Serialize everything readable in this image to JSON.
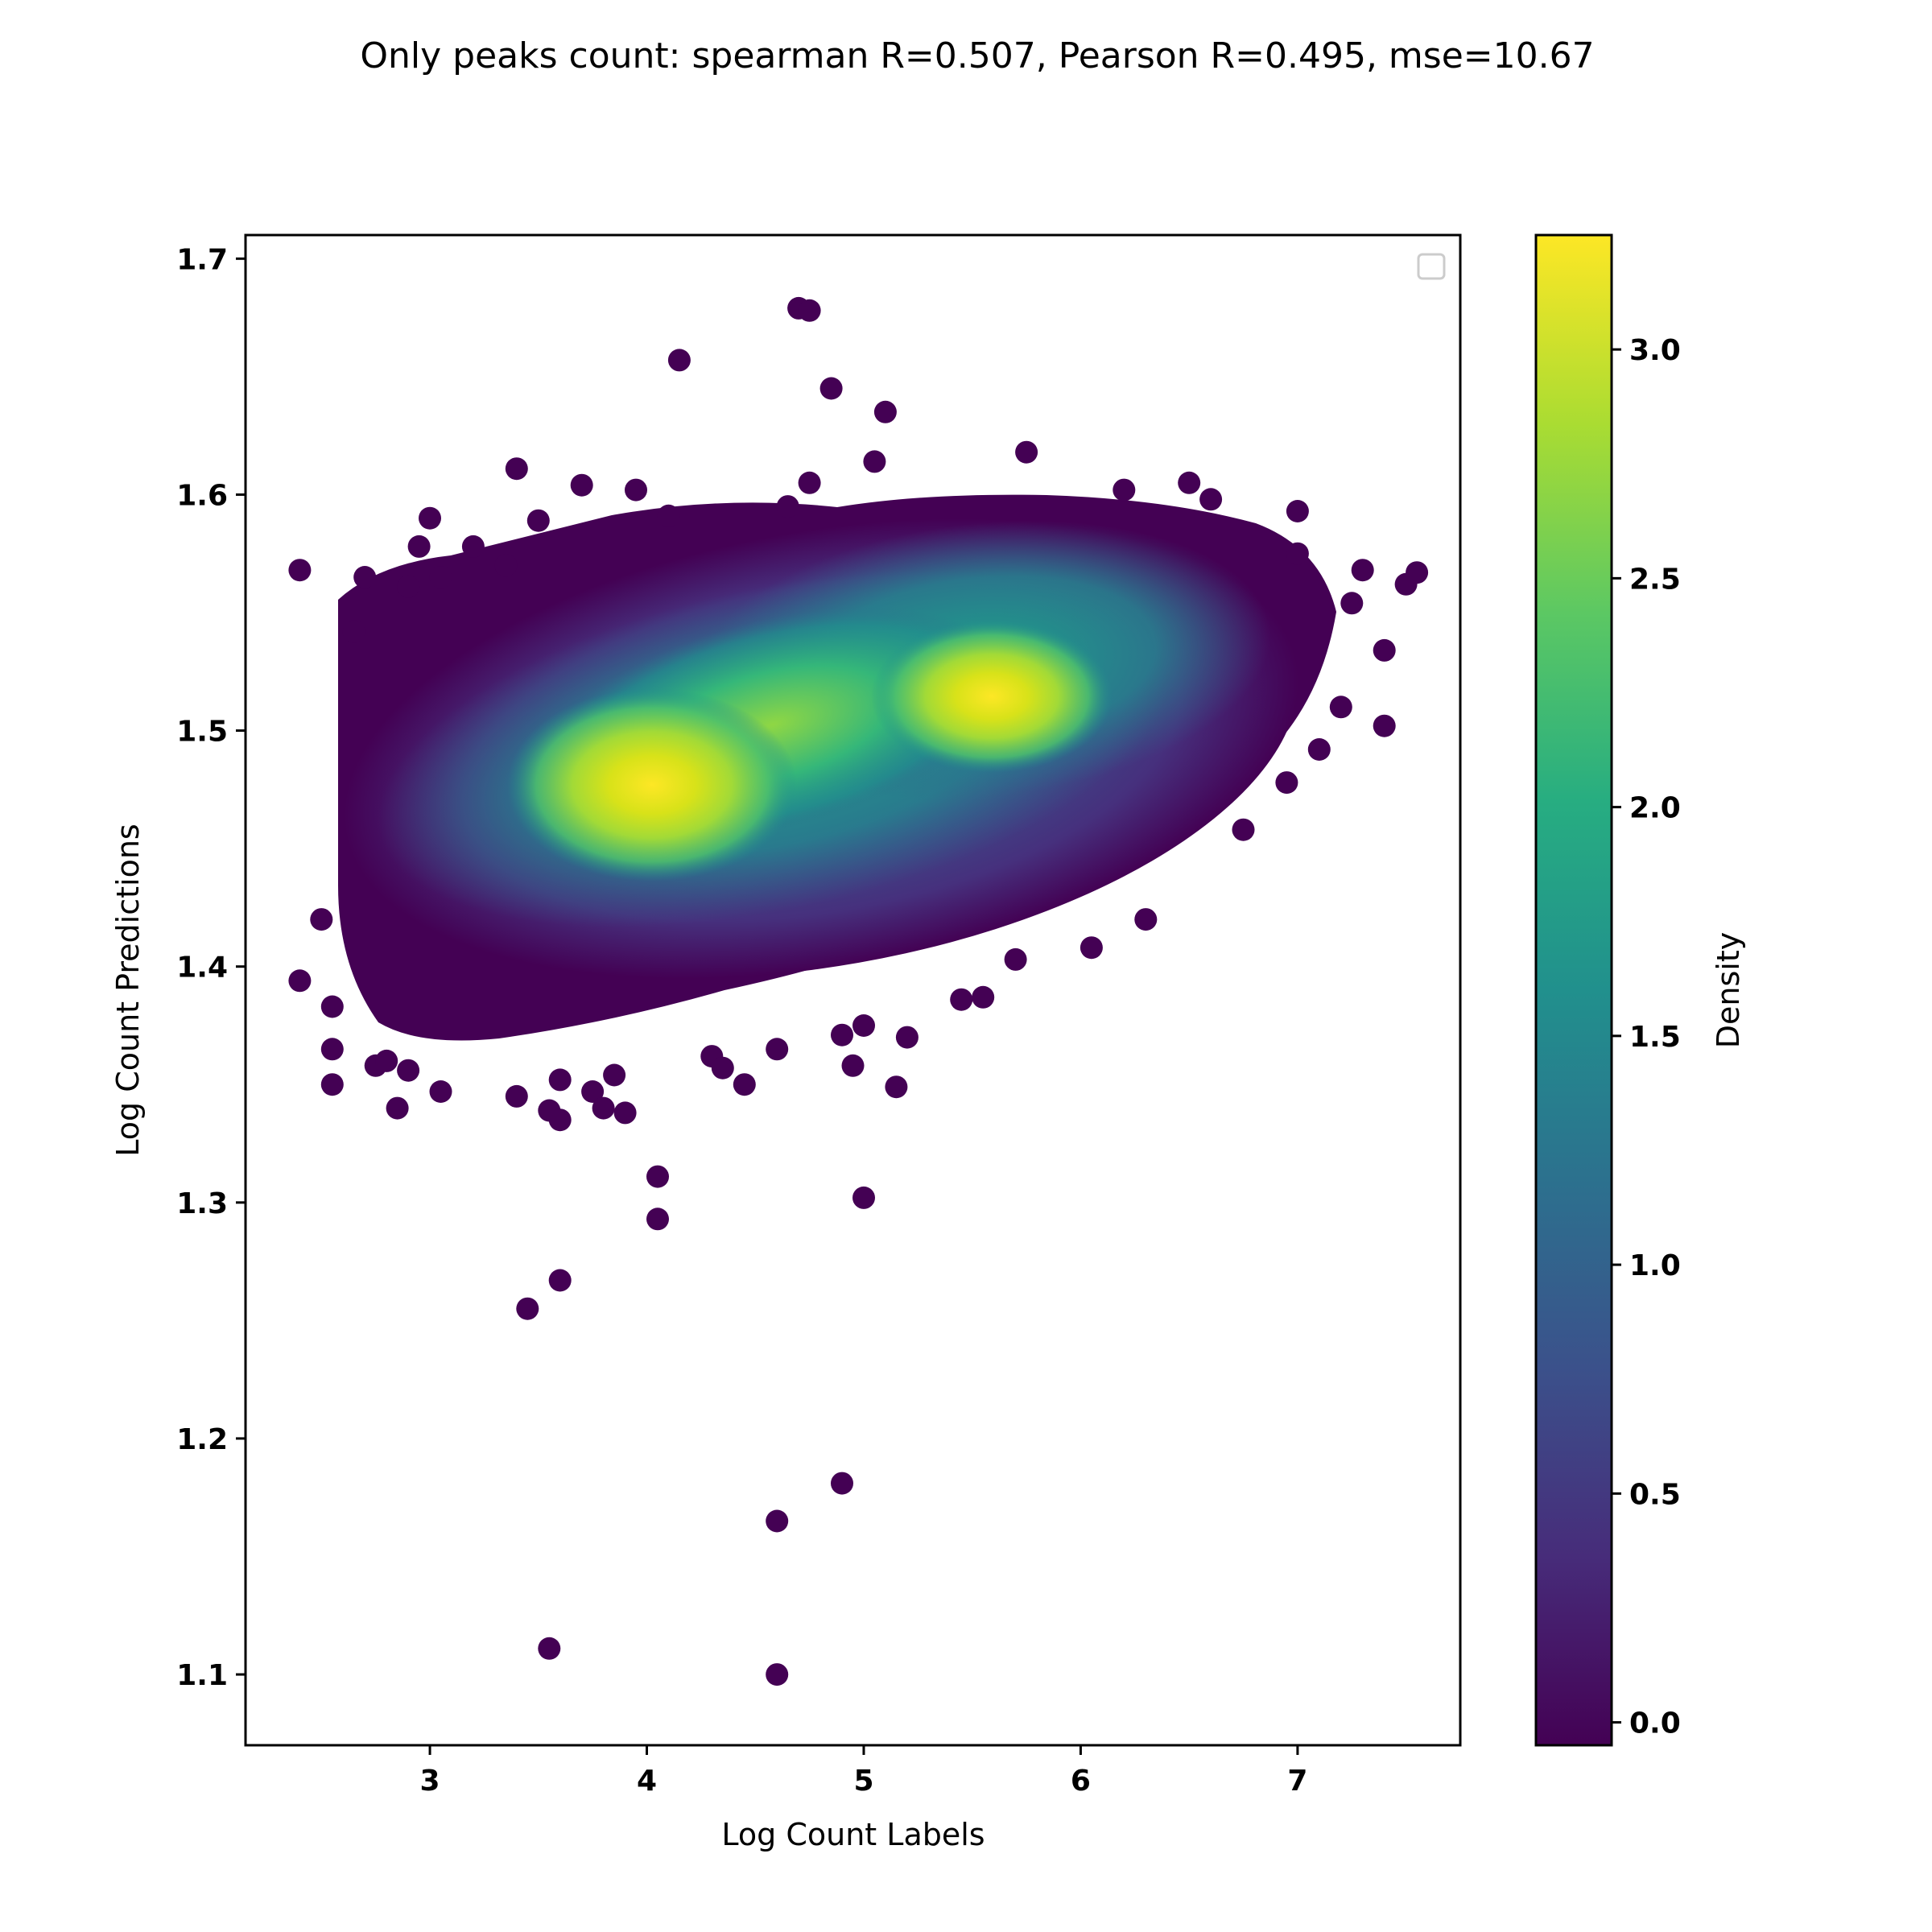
{
  "chart_data": {
    "type": "scatter",
    "title": "Only peaks count: spearman R=0.507, Pearson R=0.495, mse=10.67",
    "xlabel": "Log Count Labels",
    "ylabel": "Log Count Predictions",
    "xlim": [
      2.15,
      7.75
    ],
    "ylim": [
      1.07,
      1.71
    ],
    "xticks": [
      3,
      4,
      5,
      6,
      7
    ],
    "yticks": [
      1.1,
      1.2,
      1.3,
      1.4,
      1.5,
      1.6,
      1.7
    ],
    "grid": false,
    "legend": {
      "placement": "top-right",
      "entries": []
    },
    "colorbar": {
      "label": "Density",
      "range": [
        -0.05,
        3.25
      ],
      "ticks": [
        0.0,
        0.5,
        1.0,
        1.5,
        2.0,
        2.5,
        3.0
      ],
      "colormap": "viridis",
      "colors": [
        "#440154",
        "#472c7a",
        "#3b518b",
        "#2c718e",
        "#21908d",
        "#27ad81",
        "#5cc863",
        "#aadc32",
        "#fde725"
      ]
    },
    "density_peaks": [
      {
        "x": 4.05,
        "y": 1.475,
        "density": 3.2
      },
      {
        "x": 5.6,
        "y": 1.51,
        "density": 3.0
      }
    ],
    "points": [
      [
        2.4,
        1.568
      ],
      [
        2.4,
        1.394
      ],
      [
        2.5,
        1.42
      ],
      [
        2.55,
        1.35
      ],
      [
        2.55,
        1.365
      ],
      [
        2.55,
        1.383
      ],
      [
        2.65,
        1.542
      ],
      [
        2.7,
        1.565
      ],
      [
        2.75,
        1.358
      ],
      [
        2.8,
        1.36
      ],
      [
        2.85,
        1.34
      ],
      [
        2.9,
        1.356
      ],
      [
        2.9,
        1.561
      ],
      [
        2.95,
        1.578
      ],
      [
        3.0,
        1.59
      ],
      [
        3.05,
        1.347
      ],
      [
        3.05,
        1.565
      ],
      [
        3.2,
        1.578
      ],
      [
        3.35,
        1.57
      ],
      [
        3.4,
        1.345
      ],
      [
        3.4,
        1.611
      ],
      [
        3.5,
        1.589
      ],
      [
        3.55,
        1.339
      ],
      [
        3.6,
        1.335
      ],
      [
        3.6,
        1.352
      ],
      [
        3.7,
        1.604
      ],
      [
        3.75,
        1.347
      ],
      [
        3.8,
        1.34
      ],
      [
        3.85,
        1.354
      ],
      [
        3.9,
        1.338
      ],
      [
        3.95,
        1.602
      ],
      [
        4.05,
        1.311
      ],
      [
        4.05,
        1.293
      ],
      [
        4.1,
        1.591
      ],
      [
        4.15,
        1.657
      ],
      [
        4.3,
        1.362
      ],
      [
        4.35,
        1.357
      ],
      [
        4.45,
        1.35
      ],
      [
        4.6,
        1.365
      ],
      [
        4.65,
        1.595
      ],
      [
        4.7,
        1.679
      ],
      [
        4.75,
        1.678
      ],
      [
        4.75,
        1.605
      ],
      [
        4.85,
        1.645
      ],
      [
        4.9,
        1.371
      ],
      [
        4.95,
        1.358
      ],
      [
        5.0,
        1.375
      ],
      [
        5.0,
        1.302
      ],
      [
        5.05,
        1.614
      ],
      [
        5.1,
        1.635
      ],
      [
        5.15,
        1.349
      ],
      [
        5.2,
        1.37
      ],
      [
        5.45,
        1.386
      ],
      [
        5.55,
        1.387
      ],
      [
        5.7,
        1.403
      ],
      [
        5.75,
        1.618
      ],
      [
        6.05,
        1.408
      ],
      [
        6.2,
        1.602
      ],
      [
        6.3,
        1.42
      ],
      [
        6.5,
        1.605
      ],
      [
        6.6,
        1.598
      ],
      [
        6.75,
        1.458
      ],
      [
        6.95,
        1.478
      ],
      [
        7.0,
        1.593
      ],
      [
        7.0,
        1.575
      ],
      [
        7.1,
        1.492
      ],
      [
        7.2,
        1.51
      ],
      [
        7.25,
        1.554
      ],
      [
        7.3,
        1.568
      ],
      [
        7.4,
        1.534
      ],
      [
        7.4,
        1.502
      ],
      [
        7.5,
        1.562
      ],
      [
        7.55,
        1.567
      ],
      [
        3.45,
        1.255
      ],
      [
        3.6,
        1.267
      ],
      [
        3.55,
        1.111
      ],
      [
        4.6,
        1.1
      ],
      [
        4.6,
        1.165
      ],
      [
        4.9,
        1.181
      ]
    ]
  }
}
